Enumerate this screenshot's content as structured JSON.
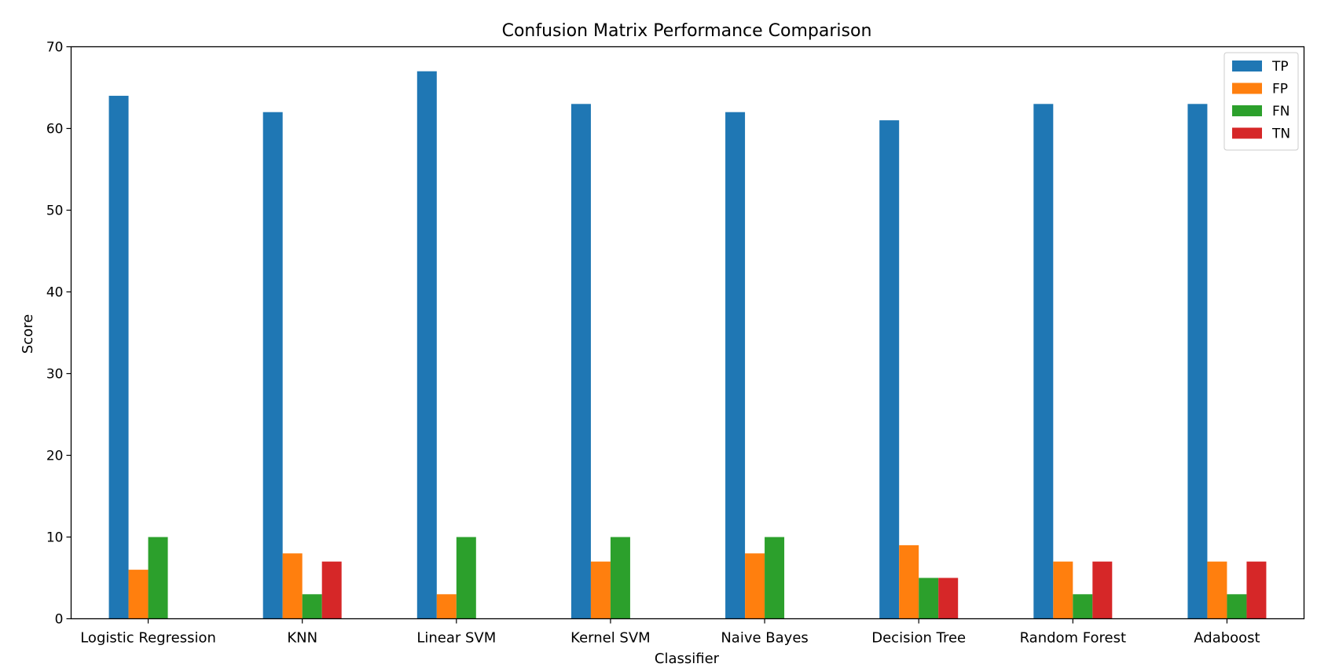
{
  "chart_data": {
    "type": "bar",
    "title": "Confusion Matrix Performance Comparison",
    "xlabel": "Classifier",
    "ylabel": "Score",
    "ylim": [
      0,
      70
    ],
    "yticks": [
      0,
      10,
      20,
      30,
      40,
      50,
      60,
      70
    ],
    "grid": false,
    "legend_position": "top-right",
    "categories": [
      "Logistic Regression",
      "KNN",
      "Linear SVM",
      "Kernel SVM",
      "Naive Bayes",
      "Decision Tree",
      "Random Forest",
      "Adaboost"
    ],
    "series": [
      {
        "name": "TP",
        "color": "#1f77b4",
        "values": [
          64,
          62,
          67,
          63,
          62,
          61,
          63,
          63
        ]
      },
      {
        "name": "FP",
        "color": "#ff7f0e",
        "values": [
          6,
          8,
          3,
          7,
          8,
          9,
          7,
          7
        ]
      },
      {
        "name": "FN",
        "color": "#2ca02c",
        "values": [
          10,
          3,
          10,
          10,
          10,
          5,
          3,
          3
        ]
      },
      {
        "name": "TN",
        "color": "#d62728",
        "values": [
          0,
          7,
          0,
          0,
          0,
          5,
          7,
          7
        ]
      }
    ]
  }
}
